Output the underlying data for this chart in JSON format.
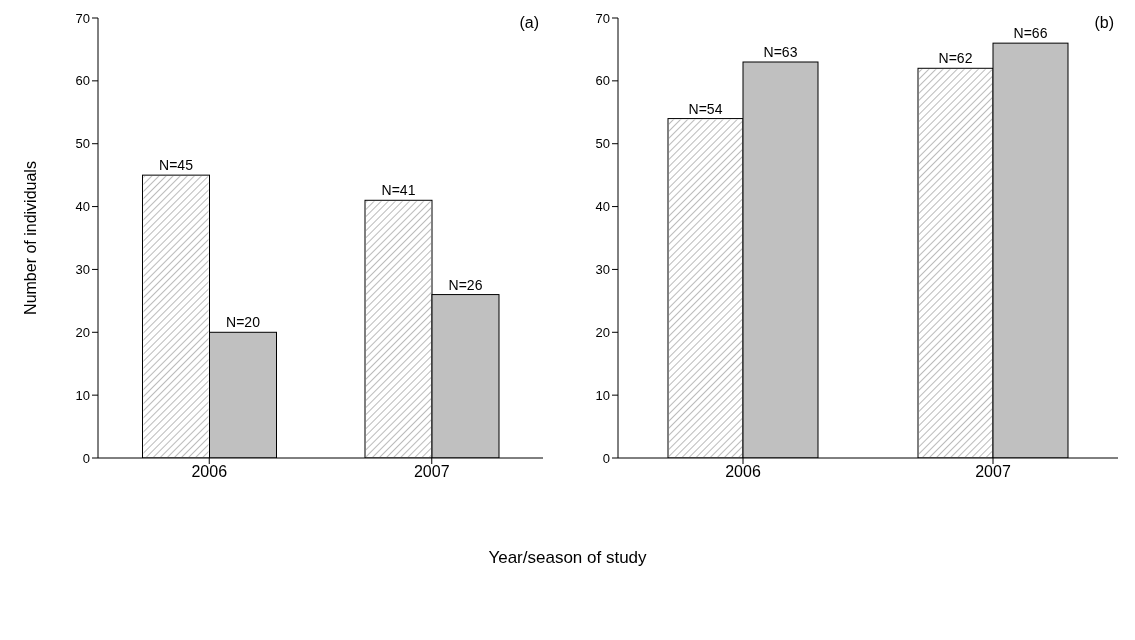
{
  "chart_data": [
    {
      "type": "bar",
      "ylabel": "Number of individuals",
      "xlabel": "Year/season of study",
      "annotations": [
        "(a)"
      ],
      "categories": [
        "2006",
        "2007"
      ],
      "ylim": [
        0,
        70
      ],
      "yticks": [
        0,
        10,
        20,
        30,
        40,
        50,
        60,
        70
      ],
      "grid": false,
      "legend": false,
      "series": [
        {
          "color": "#ffffff",
          "values": [
            45,
            41
          ],
          "value_labels": [
            "N=45",
            "N=41"
          ]
        },
        {
          "color": "#c0c0c0",
          "values": [
            20,
            26
          ],
          "value_labels": [
            "N=20",
            "N=26"
          ]
        }
      ]
    },
    {
      "type": "bar",
      "annotations": [
        "(b)"
      ],
      "categories": [
        "2006",
        "2007"
      ],
      "ylim": [
        0,
        70
      ],
      "yticks": [
        0,
        10,
        20,
        30,
        40,
        50,
        60,
        70
      ],
      "grid": false,
      "legend": false,
      "series": [
        {
          "color": "#ffffff",
          "values": [
            54,
            62
          ],
          "value_labels": [
            "N=54",
            "N=62"
          ]
        },
        {
          "color": "#c0c0c0",
          "values": [
            63,
            66
          ],
          "value_labels": [
            "N=63",
            "N=66"
          ]
        }
      ]
    }
  ]
}
